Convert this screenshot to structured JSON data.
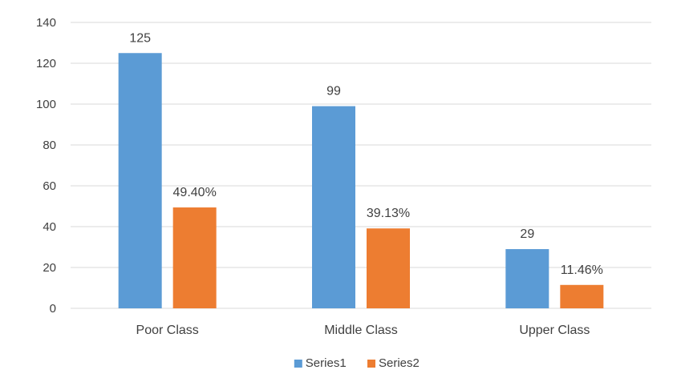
{
  "chart_data": {
    "type": "bar",
    "categories": [
      "Poor Class",
      "Middle Class",
      "Upper Class"
    ],
    "series": [
      {
        "name": "Series1",
        "values": [
          125,
          99,
          29
        ],
        "data_labels": [
          "125",
          "99",
          "29"
        ],
        "color": "#5B9BD5"
      },
      {
        "name": "Series2",
        "values": [
          49.4,
          39.13,
          11.46
        ],
        "data_labels": [
          "49.40%",
          "39.13%",
          "11.46%"
        ],
        "color": "#ED7D31"
      }
    ],
    "ylim": [
      0,
      140
    ],
    "yticks": [
      0,
      20,
      40,
      60,
      80,
      100,
      120,
      140
    ],
    "grid": true,
    "legend": "bottom"
  },
  "colors": {
    "gridline": "#D9D9D9",
    "axis_text": "#404040"
  }
}
